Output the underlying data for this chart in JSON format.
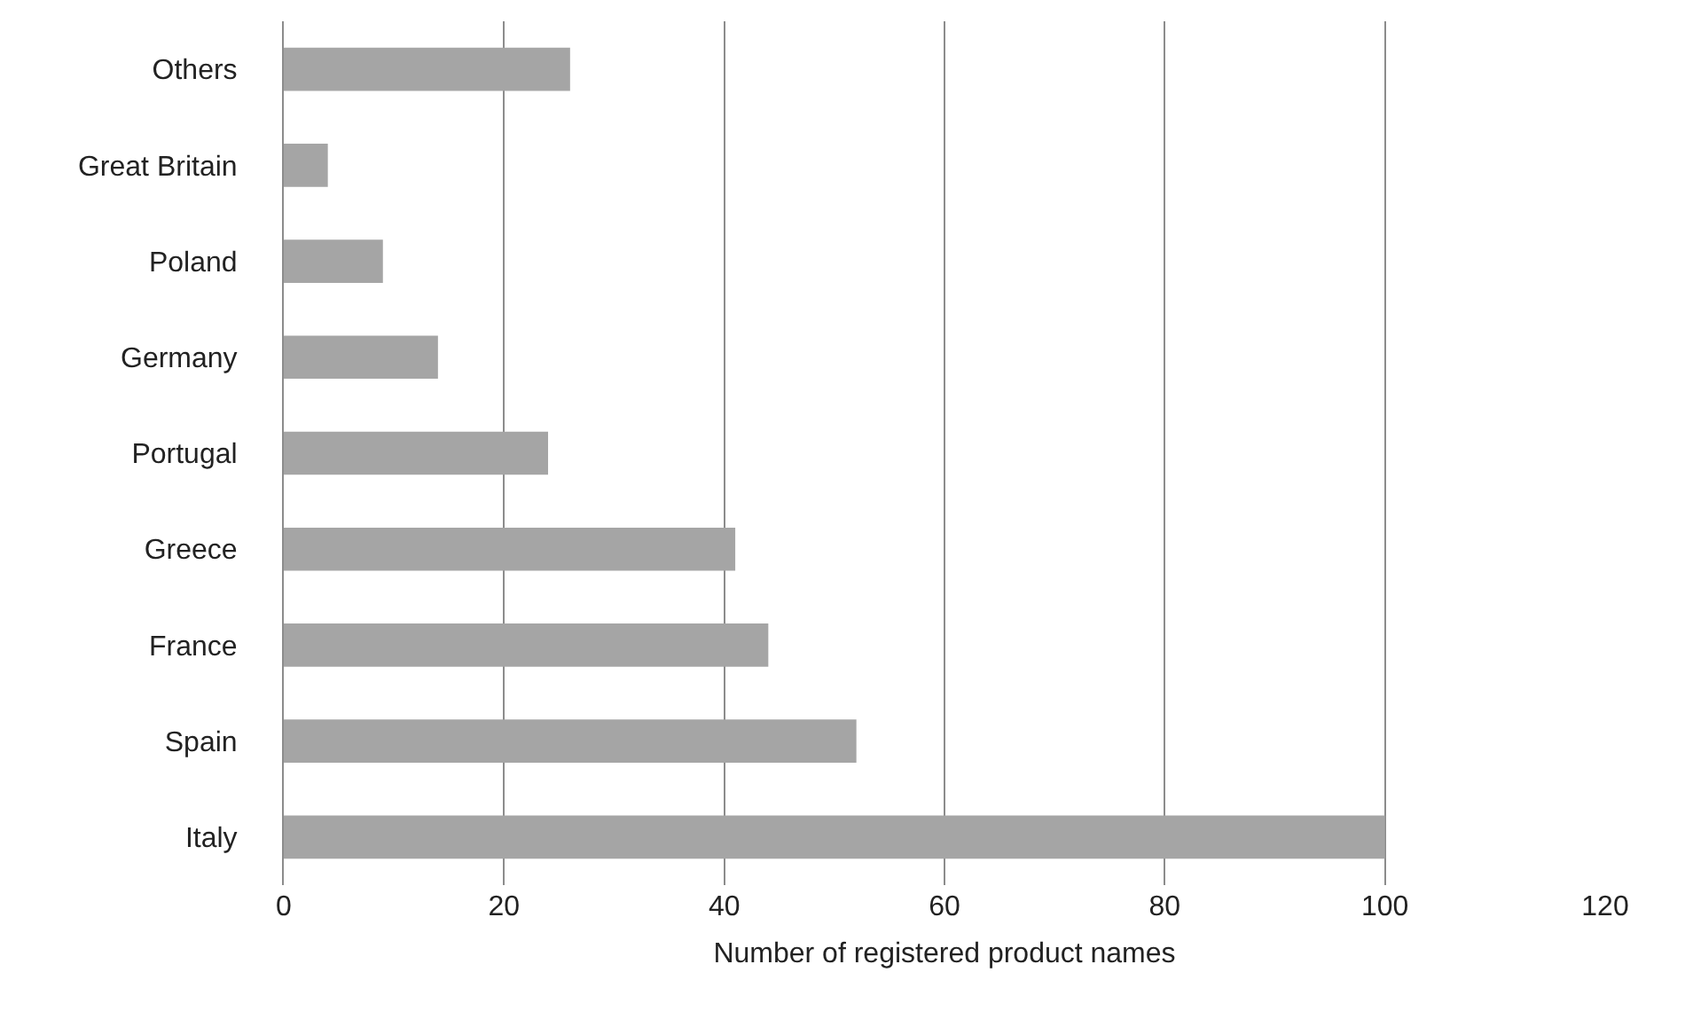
{
  "chart_data": {
    "type": "bar",
    "orientation": "horizontal",
    "xlabel": "Number of registered product names",
    "categories": [
      "Others",
      "Great Britain",
      "Poland",
      "Germany",
      "Portugal",
      "Greece",
      "France",
      "Spain",
      "Italy"
    ],
    "values": [
      26,
      4,
      9,
      14,
      24,
      41,
      44,
      52,
      100
    ],
    "color": "#a5a5a5",
    "xlim": [
      0,
      120
    ],
    "xticks": [
      0,
      20,
      40,
      60,
      80,
      100,
      120
    ],
    "grid": "x"
  }
}
